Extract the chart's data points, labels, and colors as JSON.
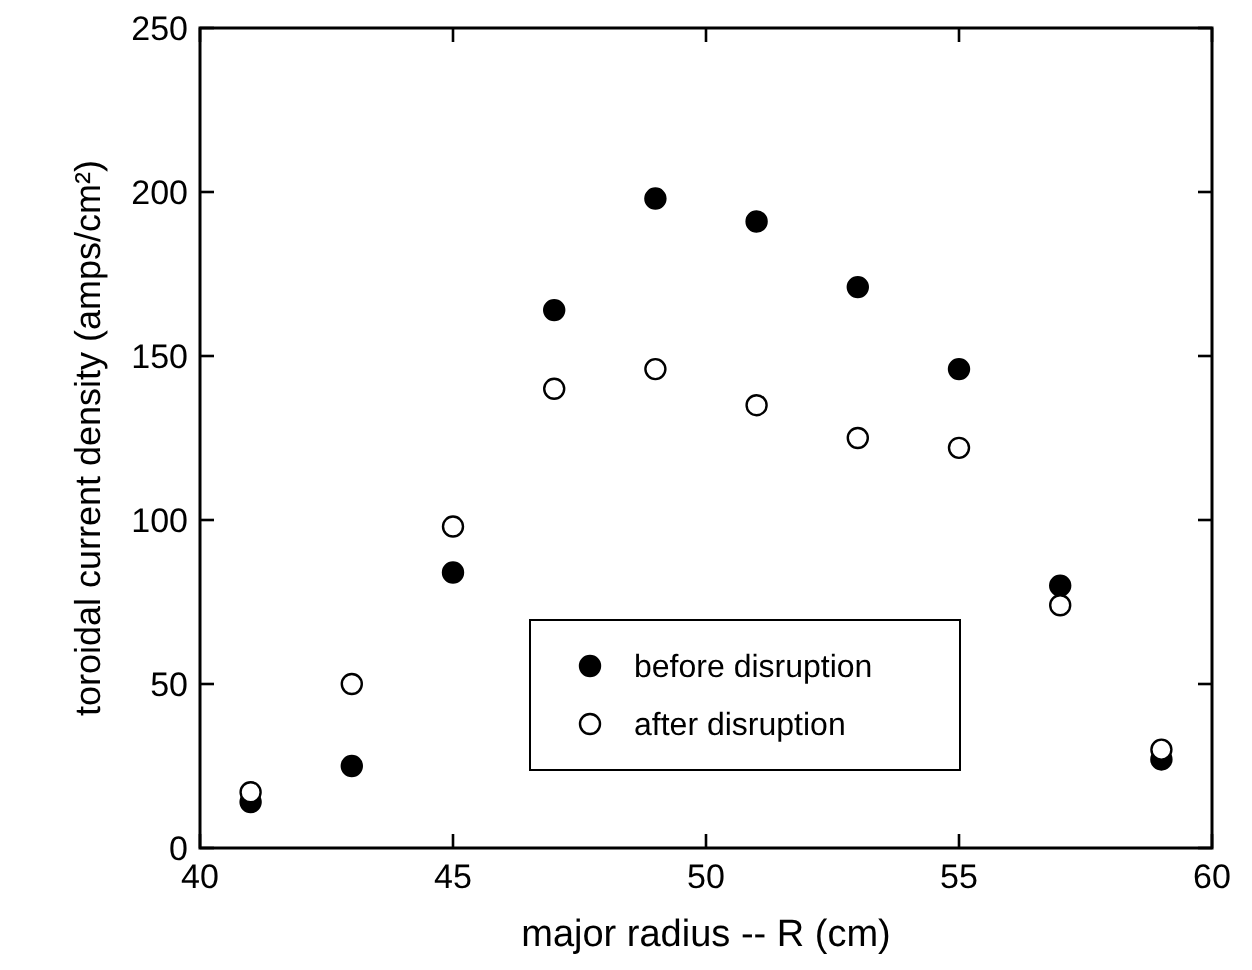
{
  "chart_data": {
    "type": "scatter",
    "xlabel": "major radius -- R (cm)",
    "ylabel": "toroidal current density (amps/cm²)",
    "x": [
      41,
      43,
      45,
      47,
      49,
      51,
      53,
      55,
      57,
      59
    ],
    "series": [
      {
        "name": "before disruption",
        "color": "#000000",
        "values": [
          14,
          25,
          84,
          164,
          198,
          191,
          171,
          146,
          80,
          27
        ]
      },
      {
        "name": "after disruption",
        "color": "#ffffff",
        "values": [
          17,
          50,
          98,
          140,
          146,
          135,
          125,
          122,
          74,
          30
        ]
      }
    ],
    "xlim": [
      40,
      60
    ],
    "xticks": [
      40,
      45,
      50,
      55,
      60
    ],
    "ylim": [
      0,
      250
    ],
    "yticks": [
      0,
      50,
      100,
      150,
      200,
      250
    ],
    "marker": "circle",
    "legend": "bottom",
    "grid": false
  }
}
